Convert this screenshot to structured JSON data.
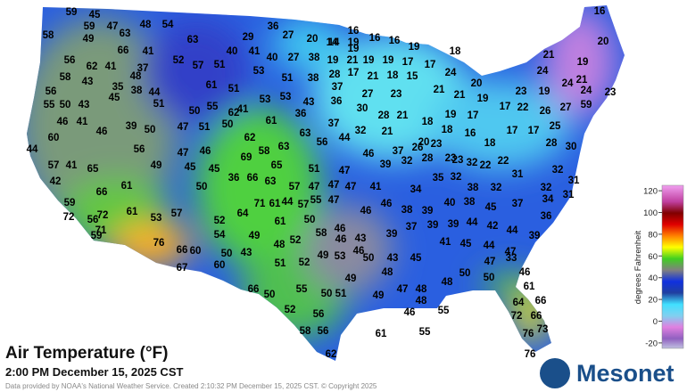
{
  "map": {
    "title": "Air Temperature (°F)",
    "subtitle": "2:00 PM December 15, 2025 CST",
    "credit": "Data provided by NOAA's National Weather Service. Created 2:10:32 PM December 15, 2025 CST. © Copyright 2025",
    "logo": "Mesonet",
    "colorbar": {
      "label": "degrees Fahrenheit",
      "lim": [
        -25,
        125
      ],
      "ticks": [
        120,
        100,
        80,
        60,
        40,
        20,
        0,
        -20
      ]
    },
    "stations": [
      59,
      45,
      16,
      59,
      47,
      48,
      54,
      36,
      16,
      16,
      14,
      16,
      58,
      49,
      63,
      63,
      29,
      27,
      20,
      14,
      19,
      19,
      19,
      18,
      20,
      56,
      66,
      41,
      40,
      41,
      40,
      27,
      38,
      19,
      21,
      19,
      19,
      17,
      17,
      21,
      19,
      62,
      41,
      37,
      52,
      57,
      51,
      38,
      28,
      17,
      21,
      18,
      15,
      24,
      20,
      24,
      21,
      58,
      43,
      48,
      35,
      61,
      51,
      53,
      51,
      37,
      27,
      23,
      21,
      21,
      19,
      23,
      19,
      24,
      24,
      23,
      56,
      45,
      38,
      44,
      51,
      53,
      53,
      43,
      36,
      30,
      28,
      21,
      18,
      19,
      17,
      17,
      22,
      26,
      27,
      59,
      55,
      50,
      43,
      46,
      41,
      39,
      50,
      47,
      51,
      50,
      41,
      50,
      55,
      62,
      61,
      36,
      37,
      32,
      21,
      20,
      18,
      16,
      18,
      17,
      17,
      25,
      60,
      46,
      62,
      58,
      63,
      63,
      56,
      44,
      46,
      37,
      26,
      23,
      23,
      22,
      22,
      28,
      30,
      44,
      56,
      47,
      46,
      69,
      65,
      51,
      47,
      39,
      32,
      28,
      23,
      32,
      31,
      32,
      57,
      41,
      65,
      49,
      45,
      45,
      36,
      66,
      63,
      57,
      47,
      47,
      41,
      34,
      35,
      32,
      38,
      32,
      32,
      31,
      31,
      42,
      61,
      50,
      44,
      55,
      47,
      47,
      46,
      46,
      38,
      39,
      40,
      38,
      45,
      37,
      34,
      36,
      59,
      66,
      72,
      61,
      53,
      57,
      52,
      64,
      71,
      61,
      57,
      50,
      58,
      46,
      46,
      43,
      39,
      37,
      39,
      39,
      44,
      42,
      44,
      39,
      56,
      72,
      54,
      49,
      61,
      48,
      52,
      46,
      43,
      45,
      41,
      45,
      44,
      47,
      59,
      71,
      76,
      66,
      60,
      50,
      43,
      51,
      52,
      49,
      53,
      50,
      50,
      47,
      33,
      46,
      67,
      60,
      49,
      48,
      48,
      50,
      61,
      66,
      50,
      55,
      50,
      51,
      49,
      48,
      47,
      48,
      55,
      66,
      52,
      56,
      46,
      64,
      72,
      66,
      73,
      76,
      58,
      56,
      61,
      55,
      62,
      76
    ]
  }
}
